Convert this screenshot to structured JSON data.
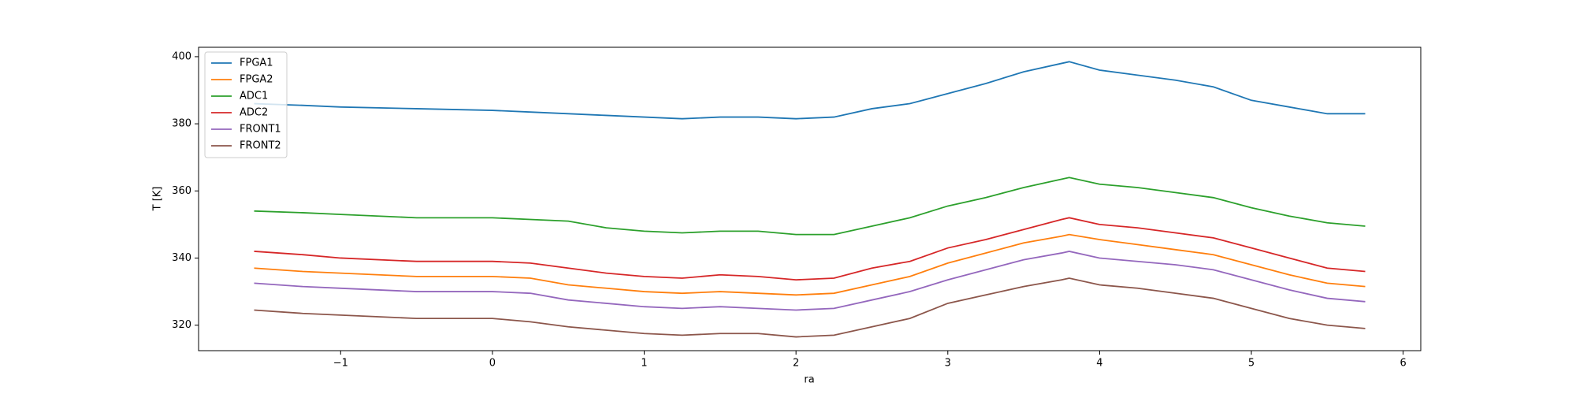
{
  "chart_data": {
    "type": "line",
    "xlabel": "ra",
    "ylabel": "T [K]",
    "x": [
      -1.57,
      -1.25,
      -1,
      -0.5,
      0,
      0.25,
      0.5,
      0.75,
      1,
      1.25,
      1.5,
      1.75,
      2,
      2.25,
      2.5,
      2.75,
      3,
      3.25,
      3.5,
      3.75,
      3.8,
      4,
      4.25,
      4.5,
      4.75,
      5,
      5.25,
      5.5,
      5.75
    ],
    "series": [
      {
        "name": "FPGA1",
        "color": "#1f77b4",
        "values": [
          386,
          385.5,
          385,
          384.5,
          384,
          383.5,
          383,
          382.5,
          382,
          381.5,
          382,
          382,
          381.5,
          382,
          384.5,
          386,
          389,
          392,
          395.5,
          398,
          398.5,
          396,
          394.5,
          393,
          391,
          387,
          385,
          383,
          383
        ]
      },
      {
        "name": "FPGA2",
        "color": "#ff7f0e",
        "values": [
          337,
          336,
          335.5,
          334.5,
          334.5,
          334,
          332,
          331,
          330,
          329.5,
          330,
          329.5,
          329,
          329.5,
          332,
          334.5,
          338.5,
          341.5,
          344.5,
          346.5,
          347,
          345.5,
          344,
          342.5,
          341,
          338,
          335,
          332.5,
          331.5
        ]
      },
      {
        "name": "ADC1",
        "color": "#2ca02c",
        "values": [
          354,
          353.5,
          353,
          352,
          352,
          351.5,
          351,
          349,
          348,
          347.5,
          348,
          348,
          347,
          347,
          349.5,
          352,
          355.5,
          358,
          361,
          363.5,
          364,
          362,
          361,
          359.5,
          358,
          355,
          352.5,
          350.5,
          349.5
        ]
      },
      {
        "name": "ADC2",
        "color": "#d62728",
        "values": [
          342,
          341,
          340,
          339,
          339,
          338.5,
          337,
          335.5,
          334.5,
          334,
          335,
          334.5,
          333.5,
          334,
          337,
          339,
          343,
          345.5,
          348.5,
          351.5,
          352,
          350,
          349,
          347.5,
          346,
          343,
          340,
          337,
          336
        ]
      },
      {
        "name": "FRONT1",
        "color": "#9467bd",
        "values": [
          332.5,
          331.5,
          331,
          330,
          330,
          329.5,
          327.5,
          326.5,
          325.5,
          325,
          325.5,
          325,
          324.5,
          325,
          327.5,
          330,
          333.5,
          336.5,
          339.5,
          341.5,
          342,
          340,
          339,
          338,
          336.5,
          333.5,
          330.5,
          328,
          327
        ]
      },
      {
        "name": "FRONT2",
        "color": "#8c564b",
        "values": [
          324.5,
          323.5,
          323,
          322,
          322,
          321,
          319.5,
          318.5,
          317.5,
          317,
          317.5,
          317.5,
          316.5,
          317,
          319.5,
          322,
          326.5,
          329,
          331.5,
          333.5,
          334,
          332,
          331,
          329.5,
          328,
          325,
          322,
          320,
          319
        ]
      }
    ],
    "xlim": [
      -1.936,
      6.116
    ],
    "xticks": [
      {
        "value": -1,
        "label": "−1"
      },
      0,
      1,
      2,
      3,
      4,
      5,
      6
    ],
    "ylim": [
      312.4,
      402.8
    ],
    "yticks": [
      320,
      340,
      360,
      380,
      400
    ],
    "legend": "upper left",
    "grid": false
  }
}
